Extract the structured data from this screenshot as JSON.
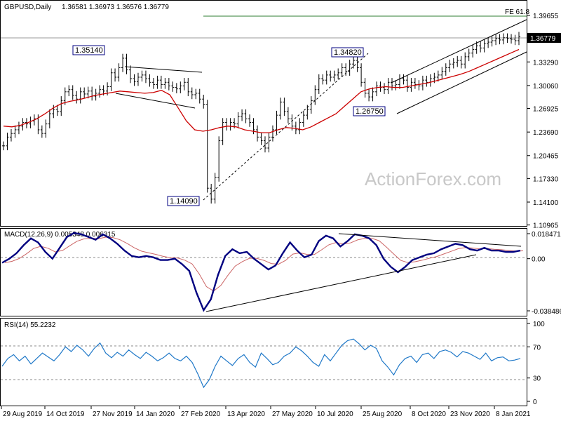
{
  "header": {
    "symbol_label": "GBPUSD,Daily",
    "ohlc_values": "1.36581 1.36973 1.36576 1.36779"
  },
  "watermark": "ActionForex.com",
  "chart_data": [
    {
      "type": "ohlc",
      "name": "price",
      "title": "GBPUSD,Daily 1.36581 1.36973 1.36576 1.36779",
      "y_ticks": [
        "1.39655",
        "1.36779",
        "1.33290",
        "1.30060",
        "1.26925",
        "1.23690",
        "1.20465",
        "1.17330",
        "1.14100",
        "1.10965"
      ],
      "ylim": [
        1.10965,
        1.39655
      ],
      "current_price": "1.36779",
      "fe_label": "FE 61.8",
      "fe_level": 1.3932,
      "annotations": [
        {
          "text": "1.35140",
          "value": 1.3514,
          "date": "2019-12-13"
        },
        {
          "text": "1.14090",
          "value": 1.1409,
          "date": "2020-03-20"
        },
        {
          "text": "1.34820",
          "value": 1.3482,
          "date": "2020-09-01"
        },
        {
          "text": "1.26750",
          "value": 1.2675,
          "date": "2020-09-23"
        }
      ],
      "closes": [
        1.218,
        1.23,
        1.235,
        1.24,
        1.245,
        1.25,
        1.248,
        1.252,
        1.255,
        1.24,
        1.235,
        1.248,
        1.262,
        1.268,
        1.265,
        1.28,
        1.292,
        1.295,
        1.287,
        1.282,
        1.292,
        1.289,
        1.293,
        1.286,
        1.29,
        1.295,
        1.293,
        1.299,
        1.318,
        1.312,
        1.325,
        1.338,
        1.322,
        1.31,
        1.306,
        1.312,
        1.315,
        1.31,
        1.305,
        1.302,
        1.308,
        1.302,
        1.305,
        1.3,
        1.298,
        1.296,
        1.3,
        1.305,
        1.292,
        1.288,
        1.29,
        1.282,
        1.275,
        1.16,
        1.145,
        1.175,
        1.225,
        1.25,
        1.245,
        1.25,
        1.248,
        1.258,
        1.262,
        1.255,
        1.25,
        1.24,
        1.23,
        1.225,
        1.215,
        1.23,
        1.24,
        1.26,
        1.278,
        1.265,
        1.255,
        1.245,
        1.24,
        1.25,
        1.26,
        1.268,
        1.28,
        1.295,
        1.31,
        1.308,
        1.315,
        1.312,
        1.315,
        1.318,
        1.325,
        1.32,
        1.33,
        1.335,
        1.325,
        1.305,
        1.29,
        1.285,
        1.292,
        1.3,
        1.298,
        1.295,
        1.305,
        1.3,
        1.302,
        1.31,
        1.308,
        1.298,
        1.305,
        1.302,
        1.3,
        1.308,
        1.305,
        1.31,
        1.312,
        1.315,
        1.32,
        1.325,
        1.33,
        1.332,
        1.335,
        1.33,
        1.34,
        1.345,
        1.35,
        1.355,
        1.352,
        1.358,
        1.36,
        1.362,
        1.365,
        1.363,
        1.366,
        1.365,
        1.364,
        1.362,
        1.368
      ],
      "sma_values": [
        1.245,
        1.244,
        1.246,
        1.25,
        1.255,
        1.262,
        1.27,
        1.276,
        1.279,
        1.281,
        1.284,
        1.287,
        1.289,
        1.291,
        1.293,
        1.292,
        1.291,
        1.29,
        1.291,
        1.294,
        1.288,
        1.27,
        1.252,
        1.24,
        1.238,
        1.24,
        1.243,
        1.245,
        1.244,
        1.24,
        1.238,
        1.236,
        1.236,
        1.24,
        1.243,
        1.242,
        1.24,
        1.244,
        1.25,
        1.256,
        1.262,
        1.272,
        1.282,
        1.292,
        1.296,
        1.298,
        1.299,
        1.298,
        1.298,
        1.3,
        1.302,
        1.304,
        1.307,
        1.31,
        1.313,
        1.316,
        1.32,
        1.325,
        1.33,
        1.335,
        1.34,
        1.345,
        1.35
      ],
      "trend_lines": [
        "upper channel",
        "lower channel"
      ]
    },
    {
      "type": "line",
      "name": "macd",
      "title": "MACD(12,26,9) 0.005348 0.006315",
      "y_ticks": [
        "0.018471",
        "0.00",
        "-0.038486"
      ],
      "ylim": [
        -0.042,
        0.021
      ],
      "values": [
        -0.003,
        0.0,
        0.004,
        0.01,
        0.015,
        0.012,
        0.005,
        0.0,
        0.008,
        0.016,
        0.019,
        0.018,
        0.016,
        0.014,
        0.018,
        0.015,
        0.011,
        0.006,
        0.002,
        0.001,
        0.002,
        0.001,
        -0.001,
        -0.001,
        0.0,
        -0.004,
        -0.009,
        -0.025,
        -0.038,
        -0.03,
        -0.012,
        0.002,
        0.007,
        0.004,
        0.005,
        0.0,
        -0.004,
        -0.008,
        -0.005,
        0.004,
        0.012,
        0.006,
        0.001,
        0.003,
        0.013,
        0.017,
        0.015,
        0.009,
        0.013,
        0.018,
        0.017,
        0.015,
        0.01,
        0.0,
        -0.006,
        -0.01,
        -0.006,
        -0.001,
        0.001,
        0.003,
        0.004,
        0.007,
        0.009,
        0.011,
        0.01,
        0.007,
        0.006,
        0.008,
        0.006,
        0.006,
        0.005,
        0.005,
        0.006
      ]
    },
    {
      "type": "line",
      "name": "rsi",
      "title": "RSI(14) 55.2232",
      "y_ticks": [
        "100",
        "70",
        "30",
        "0"
      ],
      "ylim": [
        0,
        100
      ],
      "values": [
        45,
        55,
        60,
        52,
        58,
        48,
        55,
        62,
        57,
        52,
        60,
        70,
        64,
        72,
        66,
        58,
        68,
        75,
        62,
        56,
        63,
        58,
        66,
        60,
        55,
        63,
        58,
        52,
        56,
        62,
        55,
        52,
        58,
        50,
        35,
        18,
        28,
        45,
        58,
        52,
        46,
        55,
        60,
        50,
        44,
        62,
        55,
        47,
        50,
        58,
        62,
        70,
        65,
        58,
        50,
        45,
        60,
        52,
        62,
        72,
        78,
        80,
        74,
        66,
        72,
        68,
        52,
        44,
        34,
        47,
        55,
        58,
        50,
        60,
        62,
        55,
        64,
        66,
        63,
        57,
        64,
        62,
        58,
        54,
        62,
        52,
        56,
        57,
        52,
        53,
        55
      ]
    }
  ],
  "x_axis": {
    "labels": [
      "29 Aug 2019",
      "14 Oct 2019",
      "27 Nov 2019",
      "14 Jan 2020",
      "27 Feb 2020",
      "13 Apr 2020",
      "27 May 2020",
      "10 Jul 2020",
      "25 Aug 2020",
      "8 Oct 2020",
      "23 Nov 2020",
      "8 Jan 2021"
    ]
  },
  "colors": {
    "candle": "#000000",
    "ma": "#cc0000",
    "macd": "#000080",
    "signal": "#cc6666",
    "rsi": "#1f78c8",
    "trend": "#000000"
  }
}
